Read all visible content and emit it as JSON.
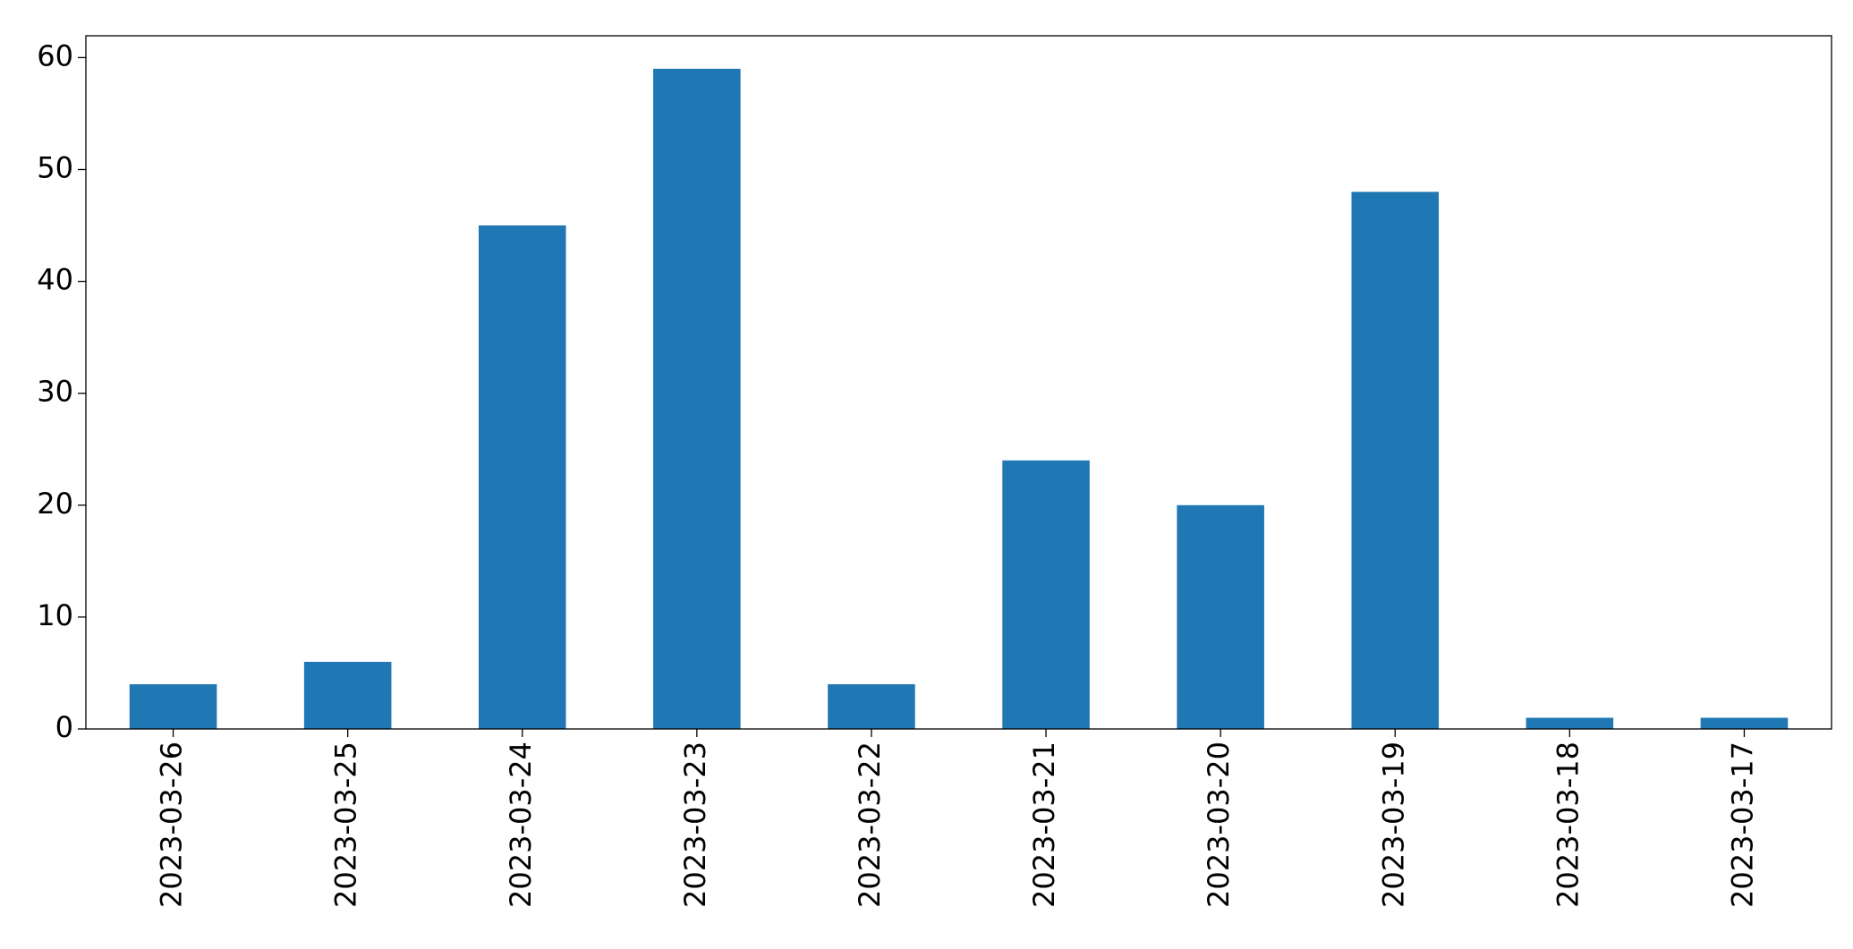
{
  "chart_data": {
    "type": "bar",
    "categories": [
      "2023-03-26",
      "2023-03-25",
      "2023-03-24",
      "2023-03-23",
      "2023-03-22",
      "2023-03-21",
      "2023-03-20",
      "2023-03-19",
      "2023-03-18",
      "2023-03-17"
    ],
    "values": [
      4,
      6,
      45,
      59,
      4,
      24,
      20,
      48,
      1,
      1
    ],
    "color": "#1f77b4",
    "ylim": [
      0,
      61.95
    ],
    "yticks": [
      0,
      10,
      20,
      30,
      40,
      50,
      60
    ],
    "grid": false
  }
}
